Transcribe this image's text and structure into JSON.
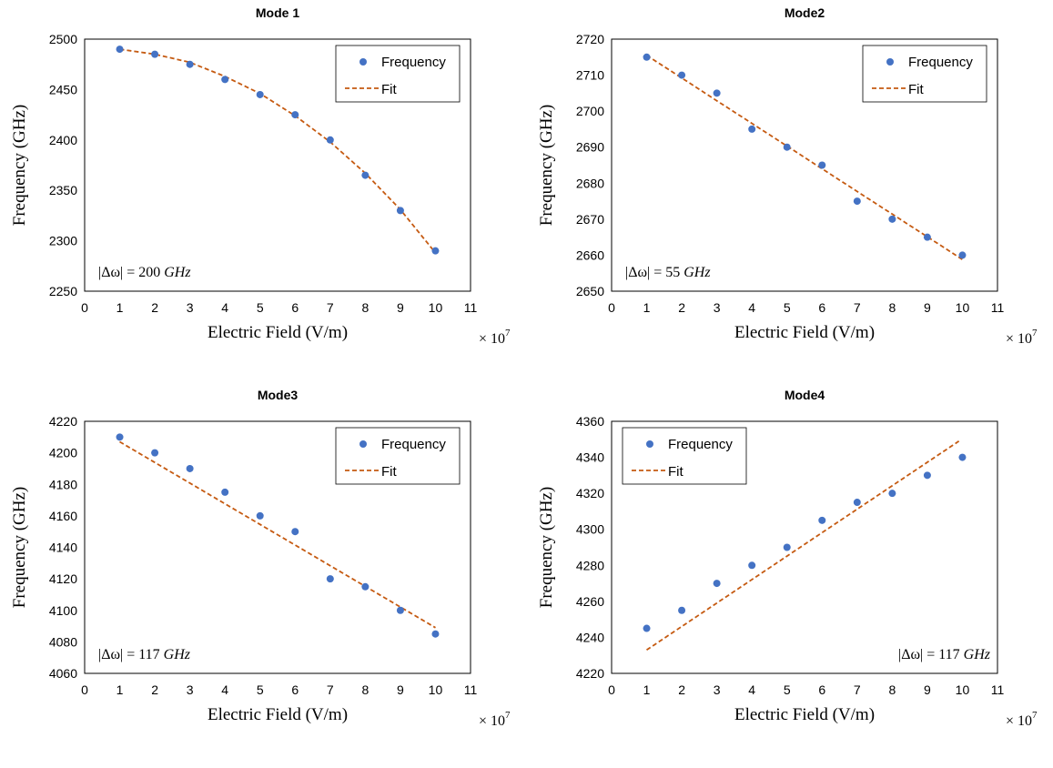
{
  "chart_data": [
    {
      "type": "scatter",
      "title": "Mode 1",
      "xlabel": "Electric Field (V/m)",
      "ylabel": "Frequency (GHz)",
      "x_multiplier": "× 10",
      "x_multiplier_exp": "7",
      "xlim": [
        0,
        11
      ],
      "ylim": [
        2250,
        2500
      ],
      "xticks": [
        0,
        1,
        2,
        3,
        4,
        5,
        6,
        7,
        8,
        9,
        10,
        11
      ],
      "yticks": [
        2250,
        2300,
        2350,
        2400,
        2450,
        2500
      ],
      "legend": {
        "position": "top-right",
        "frequency_label": "Frequency",
        "fit_label": "Fit"
      },
      "annotation": {
        "text_pre": "|Δω| = ",
        "value": "200",
        "unit": " GHz",
        "position": "bottom-left"
      },
      "series": [
        {
          "name": "Frequency",
          "kind": "points",
          "color": "#4472C4",
          "x": [
            1,
            2,
            3,
            4,
            5,
            6,
            7,
            8,
            9,
            10
          ],
          "y": [
            2490,
            2485,
            2475,
            2460,
            2445,
            2425,
            2400,
            2365,
            2330,
            2290
          ]
        },
        {
          "name": "Fit",
          "kind": "dashed-line",
          "color": "#C55A11",
          "x": [
            1,
            2,
            3,
            4,
            5,
            6,
            7,
            8,
            9,
            10
          ],
          "y": [
            2490,
            2485,
            2477,
            2463,
            2446,
            2424,
            2398,
            2367,
            2331,
            2288
          ]
        }
      ]
    },
    {
      "type": "scatter",
      "title": "Mode2",
      "xlabel": "Electric Field (V/m)",
      "ylabel": "Frequency (GHz)",
      "x_multiplier": "× 10",
      "x_multiplier_exp": "7",
      "xlim": [
        0,
        11
      ],
      "ylim": [
        2650,
        2720
      ],
      "xticks": [
        0,
        1,
        2,
        3,
        4,
        5,
        6,
        7,
        8,
        9,
        10,
        11
      ],
      "yticks": [
        2650,
        2660,
        2670,
        2680,
        2690,
        2700,
        2710,
        2720
      ],
      "legend": {
        "position": "top-right",
        "frequency_label": "Frequency",
        "fit_label": "Fit"
      },
      "annotation": {
        "text_pre": "|Δω| = ",
        "value": "55",
        "unit": " GHz",
        "position": "bottom-left"
      },
      "series": [
        {
          "name": "Frequency",
          "kind": "points",
          "color": "#4472C4",
          "x": [
            1,
            2,
            3,
            4,
            5,
            6,
            7,
            8,
            9,
            10
          ],
          "y": [
            2715,
            2710,
            2705,
            2695,
            2690,
            2685,
            2675,
            2670,
            2665,
            2660
          ]
        },
        {
          "name": "Fit",
          "kind": "dashed-line",
          "color": "#C55A11",
          "x": [
            1,
            2,
            3,
            4,
            5,
            6,
            7,
            8,
            9,
            10
          ],
          "y": [
            2715.5,
            2709.2,
            2702.9,
            2696.6,
            2690.3,
            2684.0,
            2677.7,
            2671.4,
            2665.1,
            2658.8
          ]
        }
      ]
    },
    {
      "type": "scatter",
      "title": "Mode3",
      "xlabel": "Electric Field (V/m)",
      "ylabel": "Frequency (GHz)",
      "x_multiplier": "× 10",
      "x_multiplier_exp": "7",
      "xlim": [
        0,
        11
      ],
      "ylim": [
        4060,
        4220
      ],
      "xticks": [
        0,
        1,
        2,
        3,
        4,
        5,
        6,
        7,
        8,
        9,
        10,
        11
      ],
      "yticks": [
        4060,
        4080,
        4100,
        4120,
        4140,
        4160,
        4180,
        4200,
        4220
      ],
      "legend": {
        "position": "top-right",
        "frequency_label": "Frequency",
        "fit_label": "Fit"
      },
      "annotation": {
        "text_pre": "|Δω| = ",
        "value": "117",
        "unit": " GHz",
        "position": "bottom-left"
      },
      "series": [
        {
          "name": "Frequency",
          "kind": "points",
          "color": "#4472C4",
          "x": [
            1,
            2,
            3,
            4,
            5,
            6,
            7,
            8,
            9,
            10
          ],
          "y": [
            4210,
            4200,
            4190,
            4175,
            4160,
            4150,
            4120,
            4115,
            4100,
            4085
          ]
        },
        {
          "name": "Fit",
          "kind": "dashed-line",
          "color": "#C55A11",
          "x": [
            1,
            10
          ],
          "y": [
            4207,
            4089
          ]
        }
      ]
    },
    {
      "type": "scatter",
      "title": "Mode4",
      "xlabel": "Electric Field (V/m)",
      "ylabel": "Frequency (GHz)",
      "x_multiplier": "× 10",
      "x_multiplier_exp": "7",
      "xlim": [
        0,
        11
      ],
      "ylim": [
        4220,
        4360
      ],
      "xticks": [
        0,
        1,
        2,
        3,
        4,
        5,
        6,
        7,
        8,
        9,
        10,
        11
      ],
      "yticks": [
        4220,
        4240,
        4260,
        4280,
        4300,
        4320,
        4340,
        4360
      ],
      "legend": {
        "position": "top-left",
        "frequency_label": "Frequency",
        "fit_label": "Fit"
      },
      "annotation": {
        "text_pre": "|Δω| = ",
        "value": "117",
        "unit": " GHz",
        "position": "bottom-right"
      },
      "series": [
        {
          "name": "Frequency",
          "kind": "points",
          "color": "#4472C4",
          "x": [
            1,
            2,
            3,
            4,
            5,
            6,
            7,
            8,
            9,
            10
          ],
          "y": [
            4245,
            4255,
            4270,
            4280,
            4290,
            4305,
            4315,
            4320,
            4330,
            4340
          ]
        },
        {
          "name": "Fit",
          "kind": "dashed-line",
          "color": "#C55A11",
          "x": [
            1,
            9.9
          ],
          "y": [
            4233,
            4349
          ]
        }
      ]
    }
  ]
}
